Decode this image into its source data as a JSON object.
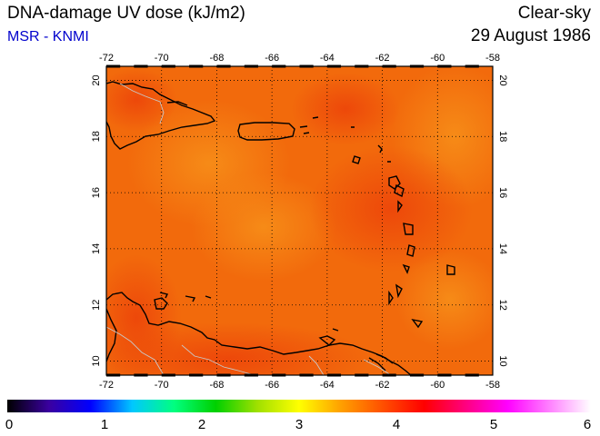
{
  "header": {
    "title": "DNA-damage UV dose (kJ/m2)",
    "source": "MSR - KNMI",
    "condition": "Clear-sky",
    "date": "29 August 1986"
  },
  "colors": {
    "source_text": "#0000cc",
    "field_base": "#f26a0c",
    "field_warm": "#ee4a0a",
    "field_light": "#f58a12",
    "coast": "#000000",
    "border": "#c8c8c8"
  },
  "map": {
    "lon_ticks": [
      "-72",
      "-70",
      "-68",
      "-66",
      "-64",
      "-62",
      "-60",
      "-58"
    ],
    "lat_ticks": [
      "10",
      "12",
      "14",
      "16",
      "18",
      "20"
    ],
    "lon_range": [
      -72,
      -58
    ],
    "lat_range": [
      9.5,
      20.5
    ],
    "grid": "dotted"
  },
  "colorbar": {
    "labels": [
      "0",
      "1",
      "2",
      "3",
      "4",
      "5",
      "6"
    ],
    "range": [
      0,
      6
    ],
    "colors": [
      "#000000",
      "#3a00a0",
      "#0000ff",
      "#00c8ff",
      "#00ff80",
      "#00d000",
      "#a0e000",
      "#ffff00",
      "#ffa000",
      "#ff5000",
      "#ff0000",
      "#ff0080",
      "#ff00ff",
      "#ff80ff",
      "#ffffff"
    ]
  }
}
